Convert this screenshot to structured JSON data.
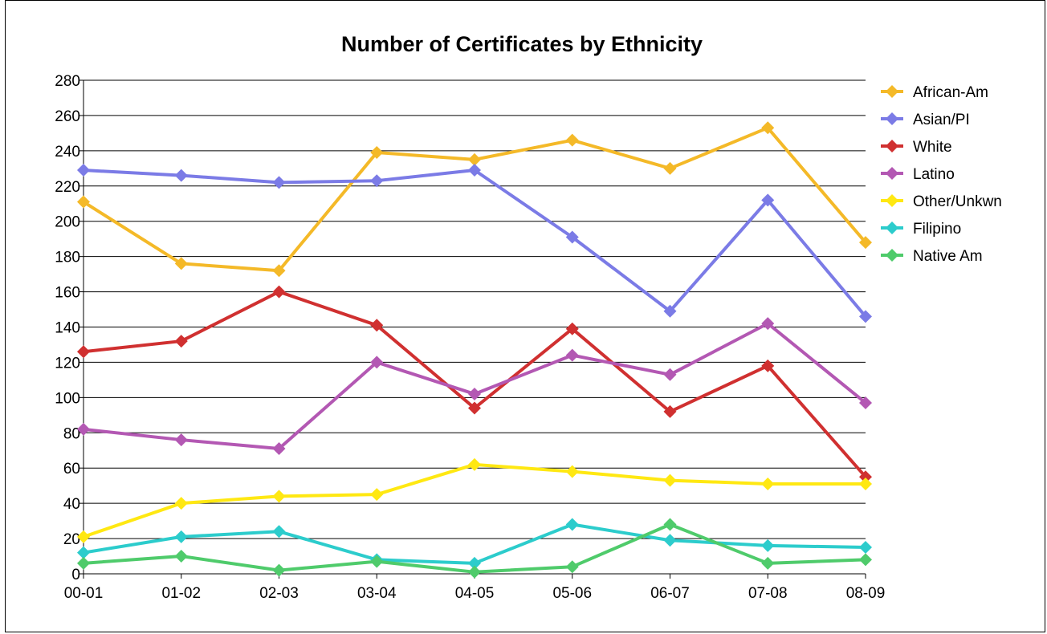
{
  "chart_data": {
    "type": "line",
    "title": "Number of Certificates by Ethnicity",
    "xlabel": "",
    "ylabel": "",
    "categories": [
      "00-01",
      "01-02",
      "02-03",
      "03-04",
      "04-05",
      "05-06",
      "06-07",
      "07-08",
      "08-09"
    ],
    "ylim": [
      0,
      280
    ],
    "yticks": [
      0,
      20,
      40,
      60,
      80,
      100,
      120,
      140,
      160,
      180,
      200,
      220,
      240,
      260,
      280
    ],
    "grid": true,
    "legend_position": "right",
    "marker": "diamond",
    "series": [
      {
        "name": "African-Am",
        "color": "#F4B928",
        "values": [
          211,
          176,
          172,
          239,
          235,
          246,
          230,
          253,
          188
        ]
      },
      {
        "name": "Asian/PI",
        "color": "#7B7BE6",
        "values": [
          229,
          226,
          222,
          223,
          229,
          191,
          149,
          212,
          146
        ]
      },
      {
        "name": "White",
        "color": "#D03030",
        "values": [
          126,
          132,
          160,
          141,
          94,
          139,
          92,
          118,
          55
        ]
      },
      {
        "name": "Latino",
        "color": "#B358B3",
        "values": [
          82,
          76,
          71,
          120,
          102,
          124,
          113,
          142,
          97
        ]
      },
      {
        "name": "Other/Unkwn",
        "color": "#FFE812",
        "values": [
          21,
          40,
          44,
          45,
          62,
          58,
          53,
          51,
          51
        ]
      },
      {
        "name": "Filipino",
        "color": "#2CCCCC",
        "values": [
          12,
          21,
          24,
          8,
          6,
          28,
          19,
          16,
          15
        ]
      },
      {
        "name": "Native Am",
        "color": "#4FCB6B",
        "values": [
          6,
          10,
          2,
          7,
          1,
          4,
          28,
          6,
          8
        ]
      }
    ]
  }
}
